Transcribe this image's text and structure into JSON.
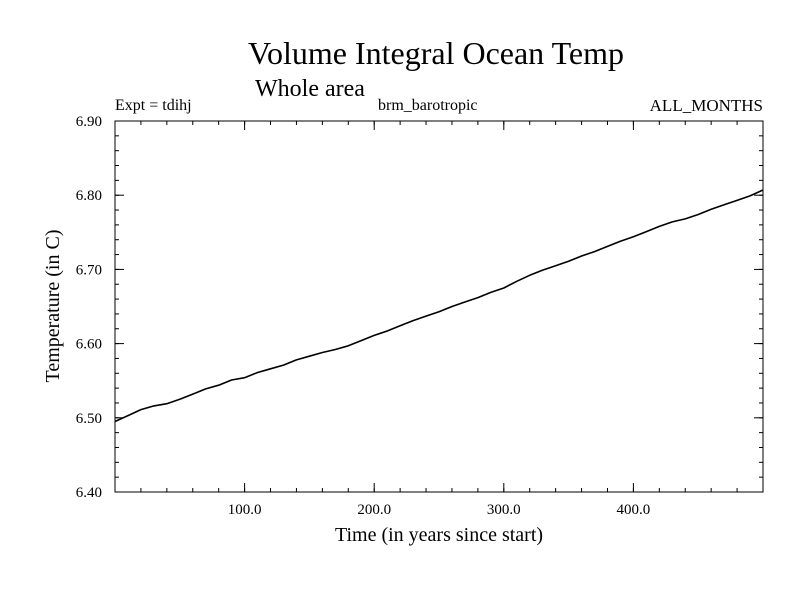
{
  "chart_data": {
    "type": "line",
    "title": "Volume Integral Ocean Temp",
    "subtitle": "Whole area",
    "annotations": {
      "experiment": "Expt = tdihj",
      "variant": "brm_barotropic",
      "months": "ALL_MONTHS"
    },
    "xlabel": "Time (in years since start)",
    "ylabel": "Temperature (in C)",
    "xlim": [
      0,
      500
    ],
    "ylim": [
      6.4,
      6.9
    ],
    "x_ticks": [
      100,
      200,
      300,
      400
    ],
    "x_tick_labels": [
      "100.0",
      "200.0",
      "300.0",
      "400.0"
    ],
    "y_ticks": [
      6.4,
      6.5,
      6.6,
      6.7,
      6.8,
      6.9
    ],
    "y_tick_labels": [
      "6.40",
      "6.50",
      "6.60",
      "6.70",
      "6.80",
      "6.90"
    ],
    "grid": false,
    "series": [
      {
        "name": "Temperature",
        "color": "#000000",
        "x": [
          0,
          10,
          20,
          30,
          40,
          50,
          60,
          70,
          80,
          90,
          100,
          110,
          120,
          130,
          140,
          150,
          160,
          170,
          180,
          190,
          200,
          210,
          220,
          230,
          240,
          250,
          260,
          270,
          280,
          290,
          300,
          310,
          320,
          330,
          340,
          350,
          360,
          370,
          380,
          390,
          400,
          410,
          420,
          430,
          440,
          450,
          460,
          470,
          480,
          490,
          500
        ],
        "values": [
          6.495,
          6.503,
          6.511,
          6.516,
          6.519,
          6.525,
          6.532,
          6.539,
          6.544,
          6.551,
          6.554,
          6.561,
          6.566,
          6.571,
          6.578,
          6.583,
          6.588,
          6.592,
          6.597,
          6.604,
          6.611,
          6.617,
          6.624,
          6.631,
          6.637,
          6.643,
          6.65,
          6.656,
          6.662,
          6.669,
          6.675,
          6.684,
          6.692,
          6.699,
          6.705,
          6.711,
          6.718,
          6.724,
          6.731,
          6.738,
          6.744,
          6.751,
          6.758,
          6.764,
          6.768,
          6.774,
          6.781,
          6.787,
          6.793,
          6.799,
          6.807
        ]
      }
    ]
  }
}
